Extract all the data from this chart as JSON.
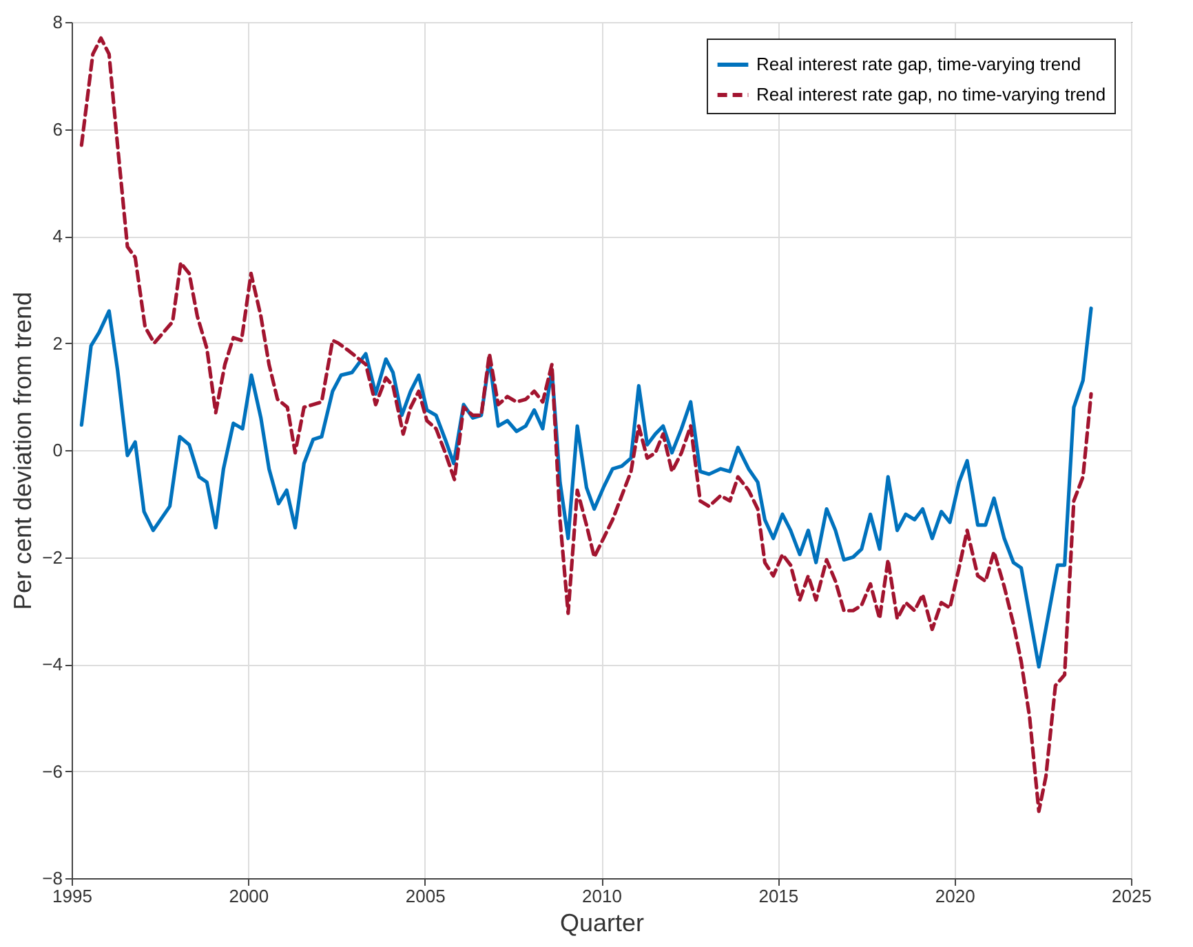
{
  "chart_data": {
    "type": "line",
    "xlabel": "Quarter",
    "ylabel": "Per cent deviation from trend",
    "xlim": [
      1995,
      2025
    ],
    "xticks": [
      1995,
      2000,
      2005,
      2010,
      2015,
      2020,
      2025
    ],
    "ylim": [
      -8,
      8
    ],
    "yticks": [
      -8,
      -6,
      -4,
      -2,
      0,
      2,
      4,
      6,
      8
    ],
    "grid": true,
    "legend": "top right",
    "series": [
      {
        "name": "Real interest rate gap, time-varying trend",
        "color": "#0072bd",
        "line_style": "solid",
        "x": [
          1995.28,
          1995.55,
          1995.78,
          1996.06,
          1996.3,
          1996.58,
          1996.8,
          1997.05,
          1997.31,
          1997.78,
          1998.06,
          1998.33,
          1998.61,
          1998.83,
          1999.08,
          1999.3,
          1999.58,
          1999.84,
          2000.09,
          2000.36,
          2000.59,
          2000.86,
          2001.09,
          2001.33,
          2001.58,
          2001.84,
          2002.08,
          2002.39,
          2002.63,
          2002.94,
          2003.33,
          2003.61,
          2003.9,
          2004.1,
          2004.35,
          2004.6,
          2004.83,
          2005.06,
          2005.32,
          2005.58,
          2005.82,
          2006.1,
          2006.36,
          2006.6,
          2006.83,
          2007.08,
          2007.34,
          2007.6,
          2007.86,
          2008.1,
          2008.34,
          2008.6,
          2008.83,
          2009.06,
          2009.32,
          2009.58,
          2009.8,
          2010.06,
          2010.32,
          2010.58,
          2010.84,
          2011.06,
          2011.3,
          2011.53,
          2011.75,
          2012.0,
          2012.27,
          2012.53,
          2012.8,
          2013.05,
          2013.38,
          2013.64,
          2013.87,
          2014.17,
          2014.43,
          2014.63,
          2014.87,
          2015.13,
          2015.36,
          2015.62,
          2015.86,
          2016.08,
          2016.38,
          2016.63,
          2016.87,
          2017.13,
          2017.37,
          2017.62,
          2017.88,
          2018.12,
          2018.38,
          2018.62,
          2018.87,
          2019.1,
          2019.37,
          2019.63,
          2019.87,
          2020.13,
          2020.36,
          2020.66,
          2020.88,
          2021.12,
          2021.41,
          2021.67,
          2021.89,
          2022.39,
          2022.92,
          2023.12,
          2023.38,
          2023.64,
          2023.87
        ],
        "values": [
          0.47,
          1.95,
          2.2,
          2.6,
          1.5,
          -0.1,
          0.15,
          -1.15,
          -1.5,
          -1.05,
          0.25,
          0.1,
          -0.5,
          -0.6,
          -1.45,
          -0.35,
          0.5,
          0.4,
          1.4,
          0.6,
          -0.35,
          -1.0,
          -0.75,
          -1.45,
          -0.25,
          0.2,
          0.25,
          1.1,
          1.4,
          1.45,
          1.8,
          1.05,
          1.7,
          1.45,
          0.65,
          1.1,
          1.4,
          0.75,
          0.65,
          0.2,
          -0.25,
          0.85,
          0.6,
          0.65,
          1.7,
          0.45,
          0.55,
          0.35,
          0.45,
          0.75,
          0.4,
          1.5,
          -0.6,
          -1.65,
          0.45,
          -0.7,
          -1.1,
          -0.7,
          -0.35,
          -0.3,
          -0.15,
          1.2,
          0.1,
          0.3,
          0.45,
          -0.05,
          0.4,
          0.9,
          -0.4,
          -0.45,
          -0.35,
          -0.4,
          0.05,
          -0.35,
          -0.6,
          -1.3,
          -1.65,
          -1.2,
          -1.5,
          -1.95,
          -1.5,
          -2.1,
          -1.1,
          -1.5,
          -2.05,
          -2.0,
          -1.85,
          -1.2,
          -1.85,
          -0.5,
          -1.5,
          -1.2,
          -1.3,
          -1.1,
          -1.65,
          -1.15,
          -1.35,
          -0.6,
          -0.2,
          -1.4,
          -1.4,
          -0.9,
          -1.65,
          -2.1,
          -2.2,
          -4.05,
          -2.15,
          -2.15,
          0.8,
          1.3,
          2.65
        ]
      },
      {
        "name": "Real interest rate gap, no time-varying trend",
        "color": "#a2142f",
        "line_style": "dashed",
        "x": [
          1995.28,
          1995.6,
          1995.83,
          1996.06,
          1996.3,
          1996.58,
          1996.8,
          1997.08,
          1997.34,
          1997.86,
          1998.09,
          1998.33,
          1998.56,
          1998.83,
          1999.08,
          1999.34,
          1999.58,
          1999.81,
          2000.08,
          2000.36,
          2000.59,
          2000.83,
          2001.11,
          2001.33,
          2001.58,
          2002.08,
          2002.39,
          2002.55,
          2002.86,
          2003.33,
          2003.61,
          2003.9,
          2004.1,
          2004.39,
          2004.6,
          2004.83,
          2005.06,
          2005.32,
          2005.58,
          2005.84,
          2006.1,
          2006.36,
          2006.6,
          2006.83,
          2007.08,
          2007.34,
          2007.6,
          2007.86,
          2008.1,
          2008.34,
          2008.6,
          2008.83,
          2009.06,
          2009.32,
          2009.58,
          2009.8,
          2010.06,
          2010.32,
          2010.58,
          2010.84,
          2011.06,
          2011.3,
          2011.53,
          2011.75,
          2012.0,
          2012.27,
          2012.53,
          2012.8,
          2013.05,
          2013.38,
          2013.64,
          2013.87,
          2014.17,
          2014.43,
          2014.63,
          2014.87,
          2015.13,
          2015.36,
          2015.62,
          2015.86,
          2016.08,
          2016.38,
          2016.63,
          2016.87,
          2017.13,
          2017.37,
          2017.62,
          2017.88,
          2018.12,
          2018.38,
          2018.62,
          2018.87,
          2019.1,
          2019.37,
          2019.63,
          2019.87,
          2020.13,
          2020.36,
          2020.66,
          2020.88,
          2021.12,
          2021.41,
          2021.67,
          2021.89,
          2022.13,
          2022.39,
          2022.59,
          2022.86,
          2023.12,
          2023.38,
          2023.64,
          2023.87
        ],
        "values": [
          5.7,
          7.4,
          7.7,
          7.4,
          5.7,
          3.8,
          3.6,
          2.3,
          2.0,
          2.4,
          3.5,
          3.3,
          2.5,
          1.9,
          0.7,
          1.6,
          2.1,
          2.05,
          3.3,
          2.5,
          1.6,
          0.95,
          0.8,
          -0.05,
          0.8,
          0.9,
          2.05,
          2.0,
          1.85,
          1.6,
          0.85,
          1.35,
          1.2,
          0.3,
          0.8,
          1.1,
          0.55,
          0.4,
          -0.05,
          -0.55,
          0.8,
          0.65,
          0.65,
          1.8,
          0.85,
          1.0,
          0.9,
          0.95,
          1.1,
          0.9,
          1.6,
          -1.3,
          -3.05,
          -0.75,
          -1.4,
          -2.0,
          -1.65,
          -1.3,
          -0.85,
          -0.4,
          0.45,
          -0.15,
          -0.05,
          0.3,
          -0.4,
          -0.05,
          0.45,
          -0.95,
          -1.05,
          -0.85,
          -0.95,
          -0.5,
          -0.75,
          -1.1,
          -2.1,
          -2.35,
          -1.95,
          -2.15,
          -2.8,
          -2.35,
          -2.8,
          -2.05,
          -2.45,
          -3.0,
          -3.0,
          -2.9,
          -2.5,
          -3.15,
          -2.05,
          -3.15,
          -2.85,
          -3.0,
          -2.7,
          -3.35,
          -2.85,
          -2.95,
          -2.2,
          -1.5,
          -2.35,
          -2.45,
          -1.9,
          -2.55,
          -3.25,
          -3.95,
          -5.0,
          -6.75,
          -6.1,
          -4.4,
          -4.2,
          -0.95,
          -0.5,
          1.05
        ]
      }
    ]
  }
}
